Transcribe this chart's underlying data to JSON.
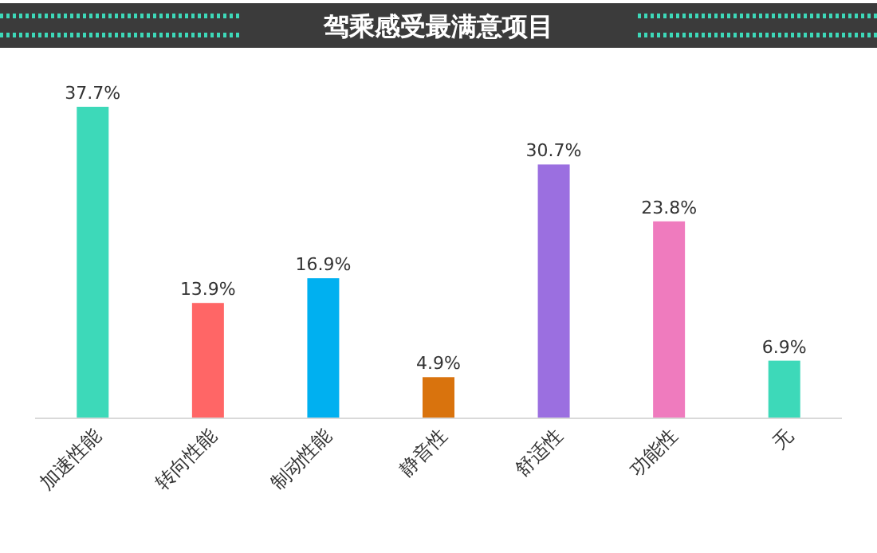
{
  "chart_data": {
    "type": "bar",
    "title": "驾乘感受最满意项目",
    "categories": [
      "加速性能",
      "转向性能",
      "制动性能",
      "静音性",
      "舒适性",
      "功能性",
      "无"
    ],
    "values": [
      37.7,
      13.9,
      16.9,
      4.9,
      30.7,
      23.8,
      6.9
    ],
    "colors": [
      "#3dd9b9",
      "#ff6666",
      "#00b0f0",
      "#d9730d",
      "#9b6fe0",
      "#ef7bbe",
      "#3dd9b9"
    ],
    "value_labels": [
      "37.7%",
      "13.9%",
      "16.9%",
      "4.9%",
      "30.7%",
      "23.8%",
      "6.9%"
    ]
  }
}
